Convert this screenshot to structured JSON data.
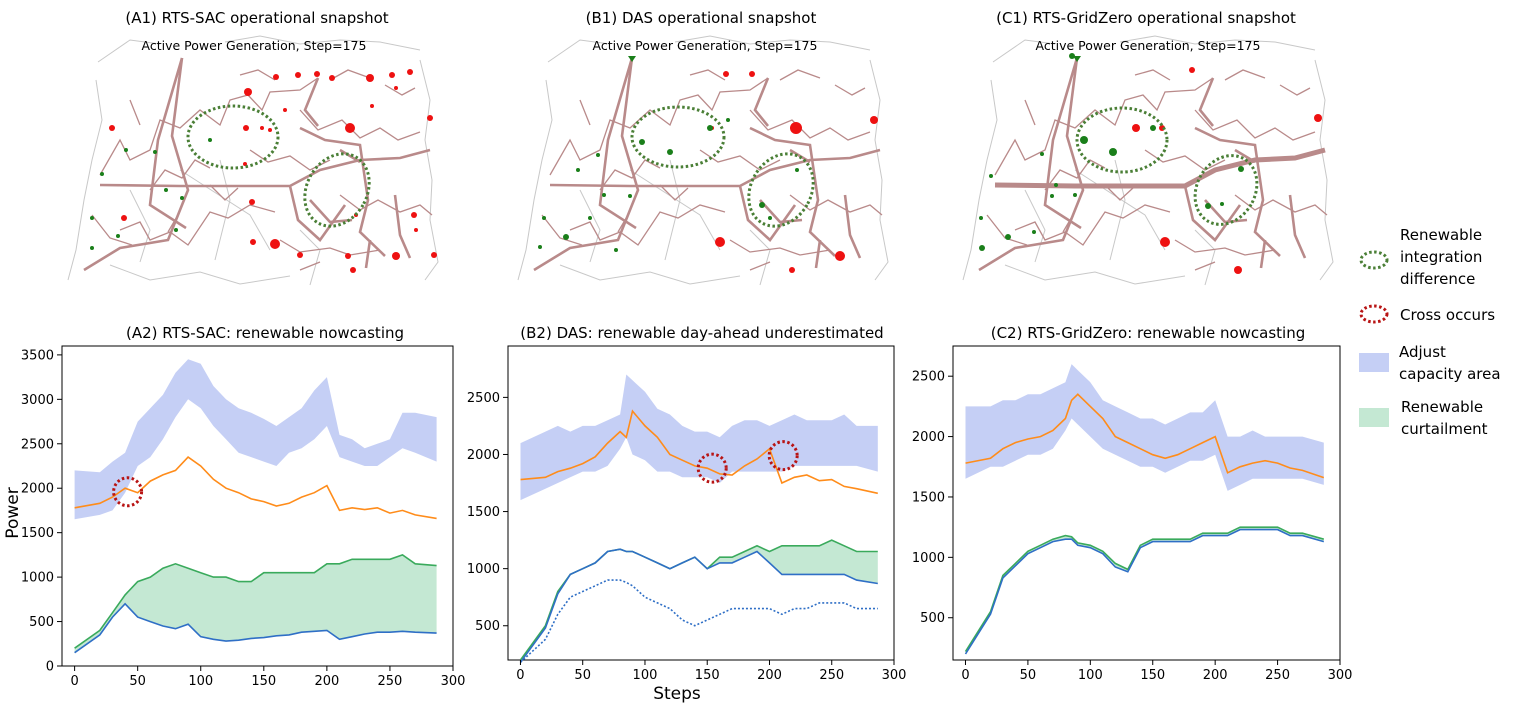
{
  "colors": {
    "capacity": "#c5cff5",
    "curtail": "#c4e8d3",
    "orange": "#ff8c1a",
    "green": "#3aaa5c",
    "blue": "#2f6fc6",
    "line_brown": "#b98a8a",
    "node_red": "#ee1111",
    "node_green": "#1a7f1a",
    "ellipse_green": "#4a7f36",
    "ellipse_red": "#b81414"
  },
  "maps": [
    {
      "title": "(A1) RTS-SAC operational snapshot",
      "subtitle": "Active Power Generation, Step=175",
      "variant": "A"
    },
    {
      "title": "(B1) DAS operational snapshot",
      "subtitle": "Active Power Generation, Step=175",
      "variant": "B"
    },
    {
      "title": "(C1) RTS-GridZero operational snapshot",
      "subtitle": "Active Power Generation, Step=175",
      "variant": "C"
    }
  ],
  "legend": [
    {
      "label_lines": [
        "Renewable",
        "integration",
        "difference"
      ],
      "kind": "green-ellipse"
    },
    {
      "label_lines": [
        "Cross occurs"
      ],
      "kind": "red-ellipse"
    },
    {
      "label_lines": [
        "Adjust",
        "capacity area"
      ],
      "kind": "blue-patch"
    },
    {
      "label_lines": [
        "Renewable",
        "curtailment"
      ],
      "kind": "green-patch"
    }
  ],
  "axis_labels": {
    "ylabel": "Power",
    "xlabel": "Steps"
  },
  "chart_data": [
    {
      "type": "area",
      "title": "(A2) RTS-SAC: renewable nowcasting",
      "xlabel": "",
      "ylabel": "Power",
      "xlim": [
        -10,
        300
      ],
      "ylim": [
        0,
        3600
      ],
      "xticks": [
        0,
        50,
        100,
        150,
        200,
        250,
        300
      ],
      "yticks": [
        0,
        500,
        1000,
        1500,
        2000,
        2500,
        3000,
        3500
      ],
      "x": [
        0,
        20,
        30,
        40,
        50,
        60,
        70,
        80,
        90,
        100,
        110,
        120,
        130,
        140,
        150,
        160,
        170,
        180,
        190,
        200,
        210,
        220,
        230,
        240,
        250,
        260,
        270,
        287
      ],
      "series": [
        {
          "name": "capacity upper",
          "values": [
            2200,
            2180,
            2300,
            2400,
            2750,
            2900,
            3050,
            3300,
            3450,
            3400,
            3150,
            3000,
            2900,
            2850,
            2780,
            2700,
            2800,
            2900,
            3100,
            3250,
            2600,
            2550,
            2450,
            2500,
            2550,
            2850,
            2850,
            2800
          ]
        },
        {
          "name": "capacity lower",
          "values": [
            1650,
            1700,
            1750,
            1950,
            2250,
            2350,
            2550,
            2800,
            3000,
            2900,
            2700,
            2550,
            2400,
            2350,
            2300,
            2250,
            2400,
            2450,
            2550,
            2700,
            2350,
            2300,
            2250,
            2250,
            2350,
            2450,
            2400,
            2300
          ]
        },
        {
          "name": "load",
          "values": [
            1780,
            1830,
            1900,
            2000,
            1950,
            2080,
            2150,
            2200,
            2350,
            2250,
            2100,
            2000,
            1950,
            1880,
            1850,
            1800,
            1830,
            1900,
            1950,
            2030,
            1750,
            1780,
            1760,
            1780,
            1720,
            1750,
            1700,
            1660
          ]
        },
        {
          "name": "renewable available",
          "values": [
            200,
            400,
            600,
            800,
            950,
            1000,
            1100,
            1150,
            1100,
            1050,
            1000,
            1000,
            950,
            950,
            1050,
            1050,
            1050,
            1050,
            1050,
            1150,
            1150,
            1200,
            1200,
            1200,
            1200,
            1250,
            1150,
            1130
          ]
        },
        {
          "name": "renewable used",
          "values": [
            150,
            350,
            550,
            700,
            550,
            500,
            450,
            420,
            470,
            330,
            300,
            280,
            290,
            310,
            320,
            340,
            350,
            380,
            390,
            400,
            300,
            330,
            360,
            380,
            380,
            390,
            380,
            370
          ]
        }
      ],
      "cross_markers": [
        {
          "x": 42,
          "y": 1960
        }
      ]
    },
    {
      "type": "area",
      "title": "(B2) DAS: renewable day-ahead underestimated",
      "xlabel": "Steps",
      "ylabel": "",
      "xlim": [
        -10,
        300
      ],
      "ylim": [
        200,
        2950
      ],
      "xticks": [
        0,
        50,
        100,
        150,
        200,
        250,
        300
      ],
      "yticks": [
        500,
        1000,
        1500,
        2000,
        2500
      ],
      "x": [
        0,
        20,
        30,
        40,
        50,
        60,
        70,
        80,
        85,
        90,
        100,
        110,
        120,
        130,
        140,
        150,
        160,
        170,
        180,
        190,
        200,
        210,
        220,
        230,
        240,
        250,
        260,
        270,
        287
      ],
      "series": [
        {
          "name": "capacity upper",
          "values": [
            2100,
            2200,
            2250,
            2200,
            2250,
            2250,
            2300,
            2350,
            2700,
            2650,
            2550,
            2400,
            2350,
            2250,
            2200,
            2200,
            2150,
            2250,
            2300,
            2300,
            2250,
            2300,
            2350,
            2300,
            2300,
            2300,
            2350,
            2250,
            2250
          ]
        },
        {
          "name": "capacity lower",
          "values": [
            1600,
            1700,
            1750,
            1800,
            1850,
            1850,
            1900,
            2050,
            2150,
            2000,
            1950,
            1850,
            1850,
            1800,
            1800,
            1800,
            1750,
            1850,
            1850,
            1850,
            1850,
            1850,
            1900,
            1900,
            1900,
            1900,
            1900,
            1900,
            1850
          ]
        },
        {
          "name": "load",
          "values": [
            1780,
            1800,
            1850,
            1880,
            1920,
            1980,
            2100,
            2200,
            2150,
            2380,
            2250,
            2150,
            2000,
            1950,
            1900,
            1880,
            1830,
            1820,
            1900,
            1960,
            2050,
            1750,
            1800,
            1820,
            1770,
            1780,
            1720,
            1700,
            1660
          ]
        },
        {
          "name": "renewable available",
          "values": [
            200,
            500,
            800,
            950,
            1000,
            1050,
            1150,
            1170,
            1150,
            1150,
            1100,
            1050,
            1000,
            1050,
            1100,
            1000,
            1100,
            1100,
            1150,
            1200,
            1150,
            1200,
            1200,
            1200,
            1200,
            1250,
            1200,
            1150,
            1150
          ]
        },
        {
          "name": "renewable used",
          "values": [
            180,
            480,
            780,
            950,
            1000,
            1050,
            1150,
            1170,
            1150,
            1150,
            1100,
            1050,
            1000,
            1050,
            1100,
            1000,
            1050,
            1050,
            1100,
            1150,
            1050,
            950,
            950,
            950,
            950,
            950,
            950,
            900,
            870
          ]
        },
        {
          "name": "renewable day-ahead",
          "values": [
            180,
            380,
            600,
            750,
            800,
            850,
            900,
            900,
            880,
            850,
            750,
            700,
            650,
            550,
            500,
            550,
            600,
            650,
            650,
            650,
            650,
            600,
            650,
            650,
            700,
            700,
            700,
            650,
            650
          ]
        }
      ],
      "cross_markers": [
        {
          "x": 154,
          "y": 1880
        },
        {
          "x": 211,
          "y": 1990
        }
      ]
    },
    {
      "type": "area",
      "title": "(C2) RTS-GridZero: renewable nowcasting",
      "xlabel": "",
      "ylabel": "",
      "xlim": [
        -10,
        300
      ],
      "ylim": [
        150,
        2750
      ],
      "xticks": [
        0,
        50,
        100,
        150,
        200,
        250,
        300
      ],
      "yticks": [
        500,
        1000,
        1500,
        2000,
        2500
      ],
      "x": [
        0,
        20,
        30,
        40,
        50,
        60,
        70,
        80,
        85,
        90,
        100,
        110,
        120,
        130,
        140,
        150,
        160,
        170,
        180,
        190,
        200,
        210,
        220,
        230,
        240,
        250,
        260,
        270,
        287
      ],
      "series": [
        {
          "name": "capacity upper",
          "values": [
            2250,
            2250,
            2300,
            2300,
            2350,
            2350,
            2400,
            2450,
            2600,
            2550,
            2450,
            2300,
            2250,
            2200,
            2150,
            2150,
            2100,
            2150,
            2200,
            2200,
            2300,
            2000,
            2000,
            2050,
            2000,
            2000,
            2000,
            2000,
            1950
          ]
        },
        {
          "name": "capacity lower",
          "values": [
            1650,
            1750,
            1750,
            1800,
            1850,
            1850,
            1900,
            2050,
            2150,
            2100,
            2000,
            1900,
            1850,
            1800,
            1750,
            1750,
            1700,
            1750,
            1800,
            1800,
            1850,
            1550,
            1600,
            1650,
            1650,
            1650,
            1650,
            1650,
            1600
          ]
        },
        {
          "name": "load",
          "values": [
            1780,
            1820,
            1900,
            1950,
            1980,
            2000,
            2050,
            2150,
            2300,
            2350,
            2250,
            2150,
            2000,
            1950,
            1900,
            1850,
            1820,
            1850,
            1900,
            1950,
            2000,
            1700,
            1750,
            1780,
            1800,
            1780,
            1740,
            1720,
            1660
          ]
        },
        {
          "name": "renewable available",
          "values": [
            220,
            550,
            850,
            950,
            1050,
            1100,
            1150,
            1180,
            1170,
            1120,
            1100,
            1050,
            950,
            900,
            1100,
            1150,
            1150,
            1150,
            1150,
            1200,
            1200,
            1200,
            1250,
            1250,
            1250,
            1250,
            1200,
            1200,
            1150
          ]
        },
        {
          "name": "renewable used",
          "values": [
            200,
            530,
            830,
            930,
            1030,
            1080,
            1130,
            1150,
            1150,
            1100,
            1080,
            1030,
            920,
            880,
            1080,
            1130,
            1130,
            1130,
            1130,
            1180,
            1180,
            1180,
            1230,
            1230,
            1230,
            1230,
            1180,
            1180,
            1130
          ]
        }
      ],
      "cross_markers": []
    }
  ]
}
